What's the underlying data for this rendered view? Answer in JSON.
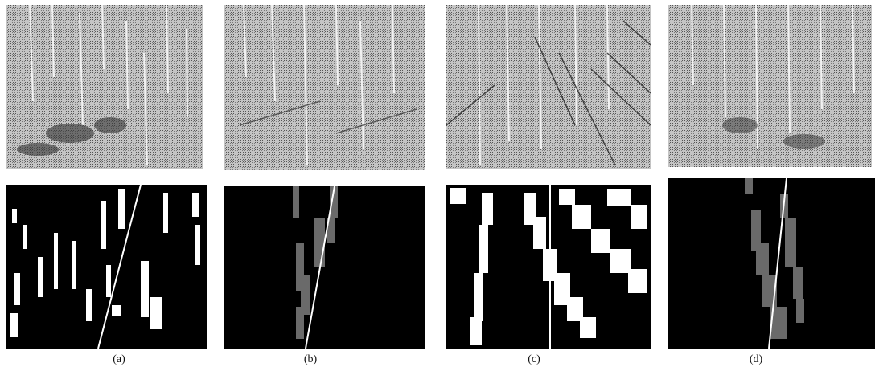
{
  "figure": {
    "panels": [
      {
        "caption": "(a)",
        "mask_blob_color": "#ffffff"
      },
      {
        "caption": "(b)",
        "mask_blob_color": "#6a6a6a"
      },
      {
        "caption": "(c)",
        "mask_blob_color": "#ffffff"
      },
      {
        "caption": "(d)",
        "mask_blob_color": "#6a6a6a"
      }
    ],
    "line_color": "#ffffff",
    "photo_tone": "#b9b9b9"
  }
}
